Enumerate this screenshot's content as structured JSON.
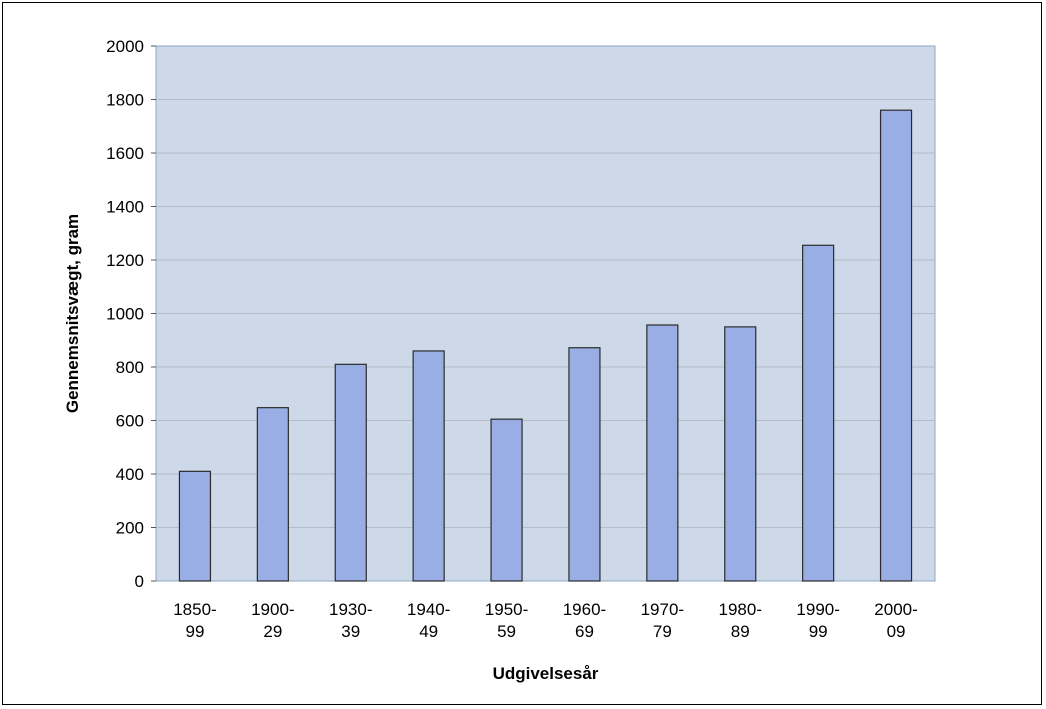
{
  "chart_data": {
    "type": "bar",
    "title": "",
    "xlabel": "Udgivelsesår",
    "ylabel": "Gennemsnitsvægt, gram",
    "categories": [
      [
        "1850-",
        "99"
      ],
      [
        "1900-",
        "29"
      ],
      [
        "1930-",
        "39"
      ],
      [
        "1940-",
        "49"
      ],
      [
        "1950-",
        "59"
      ],
      [
        "1960-",
        "69"
      ],
      [
        "1970-",
        "79"
      ],
      [
        "1980-",
        "89"
      ],
      [
        "1990-",
        "99"
      ],
      [
        "2000-",
        "09"
      ]
    ],
    "values": [
      410,
      648,
      810,
      860,
      605,
      872,
      957,
      950,
      1255,
      1760
    ],
    "ylim": [
      0,
      2000
    ],
    "yticks": [
      0,
      200,
      400,
      600,
      800,
      1000,
      1200,
      1400,
      1600,
      1800,
      2000
    ],
    "grid": true,
    "legend": "none",
    "colors": {
      "plot_background": "#cdd9e8",
      "bar_fill": "#9aaee6",
      "bar_stroke": "#2b2b2b",
      "gridline": "#b4bcc6",
      "plot_border": "#8fa6c8"
    }
  }
}
